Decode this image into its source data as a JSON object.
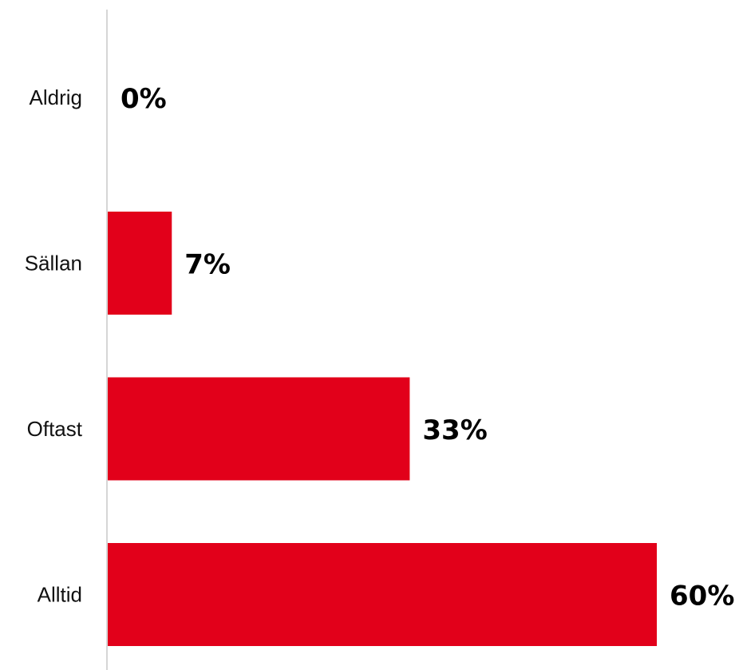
{
  "chart_data": {
    "type": "bar",
    "orientation": "horizontal",
    "categories": [
      "Aldrig",
      "Sällan",
      "Oftast",
      "Alltid"
    ],
    "values": [
      0,
      7,
      33,
      60
    ],
    "value_labels": [
      "0%",
      "7%",
      "33%",
      "60%"
    ],
    "unit": "%",
    "title": "",
    "xlabel": "",
    "ylabel": "",
    "xlim": [
      0,
      60
    ],
    "grid": false,
    "legend": "none",
    "bar_color": "#E2001A",
    "axis_color": "#D6D6D6"
  }
}
